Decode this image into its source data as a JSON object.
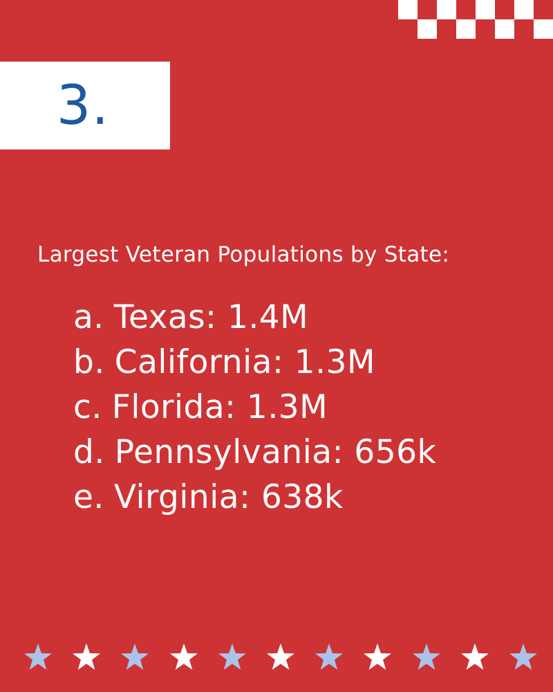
{
  "number_label": "3.",
  "heading": "Largest Veteran Populations by State:",
  "items": [
    {
      "marker": "a.",
      "text": "Texas: 1.4M"
    },
    {
      "marker": "b.",
      "text": "California: 1.3M"
    },
    {
      "marker": "c.",
      "text": "Florida: 1.3M"
    },
    {
      "marker": "d.",
      "text": "Pennsylvania: 656k"
    },
    {
      "marker": "e.",
      "text": "Virginia: 638k"
    }
  ],
  "colors": {
    "background": "#cd3335",
    "number_box": "#ffffff",
    "number_text": "#1b5a9e",
    "star_light_blue": "#a9c4e8",
    "star_white": "#ffffff"
  },
  "icons": {
    "star": "star-icon",
    "checker": "checkerboard-pattern"
  },
  "star_colors": [
    "light-blue",
    "white",
    "light-blue",
    "white",
    "light-blue",
    "white",
    "light-blue",
    "white",
    "light-blue",
    "white",
    "light-blue"
  ]
}
